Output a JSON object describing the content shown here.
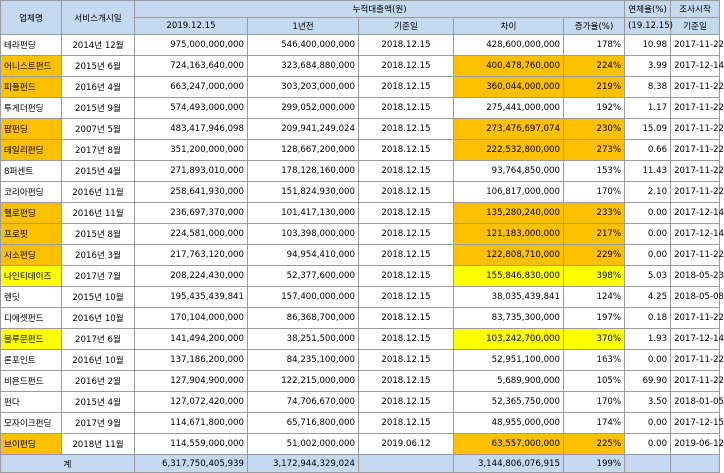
{
  "headers": {
    "name": "업체명",
    "start": "서비스개시일",
    "cumulative": "누적대출액(원)",
    "date_2019": "2019.12.15",
    "year_ago": "1년전",
    "base_date": "기준일",
    "diff": "차이",
    "growth": "증가율(%)",
    "delinquency": "연체율(%)",
    "delinquency_date": "(19.12.15)",
    "survey": "조사시작",
    "survey_base": "기준일"
  },
  "rows": [
    {
      "name": "테라펀딩",
      "start": "2014년 12월",
      "v2019": "975,000,000,000",
      "v_prev": "546,400,000,000",
      "base": "2018.12.15",
      "diff": "428,600,000,000",
      "growth": "178%",
      "delinq": "10.98",
      "survey": "2017-11-22",
      "highlight": ""
    },
    {
      "name": "어니스트펀드",
      "start": "2015년 6월",
      "v2019": "724,163,640,000",
      "v_prev": "323,684,880,000",
      "base": "2018.12.15",
      "diff": "400,478,760,000",
      "growth": "224%",
      "delinq": "3.99",
      "survey": "2017-12-14",
      "highlight": "orange"
    },
    {
      "name": "피플펀드",
      "start": "2016년 4월",
      "v2019": "663,247,000,000",
      "v_prev": "303,203,000,000",
      "base": "2018.12.15",
      "diff": "360,044,000,000",
      "growth": "219%",
      "delinq": "8.38",
      "survey": "2017-11-22",
      "highlight": "orange"
    },
    {
      "name": "투게더펀딩",
      "start": "2015년 9월",
      "v2019": "574,493,000,000",
      "v_prev": "299,052,000,000",
      "base": "2018.12.15",
      "diff": "275,441,000,000",
      "growth": "192%",
      "delinq": "1.17",
      "survey": "2017-11-22",
      "highlight": ""
    },
    {
      "name": "팝펀딩",
      "start": "2007년 5월",
      "v2019": "483,417,946,098",
      "v_prev": "209,941,249,024",
      "base": "2018.12.15",
      "diff": "273,476,697,074",
      "growth": "230%",
      "delinq": "15.09",
      "survey": "2017-11-22",
      "highlight": "orange"
    },
    {
      "name": "데일리펀딩",
      "start": "2017년 8월",
      "v2019": "351,200,000,000",
      "v_prev": "128,667,200,000",
      "base": "2018.12.15",
      "diff": "222,532,800,000",
      "growth": "273%",
      "delinq": "0.66",
      "survey": "2017-11-22",
      "highlight": "orange"
    },
    {
      "name": "8퍼센트",
      "start": "2015년 4월",
      "v2019": "271,893,010,000",
      "v_prev": "178,128,160,000",
      "base": "2018.12.15",
      "diff": "93,764,850,000",
      "growth": "153%",
      "delinq": "11.43",
      "survey": "2017-11-22",
      "highlight": ""
    },
    {
      "name": "코리아펀딩",
      "start": "2016년 11월",
      "v2019": "258,641,930,000",
      "v_prev": "151,824,930,000",
      "base": "2018.12.15",
      "diff": "106,817,000,000",
      "growth": "170%",
      "delinq": "2.10",
      "survey": "2017-11-22",
      "highlight": ""
    },
    {
      "name": "헬로펀딩",
      "start": "2016년 11월",
      "v2019": "236,697,370,000",
      "v_prev": "101,417,130,000",
      "base": "2018.12.15",
      "diff": "135,280,240,000",
      "growth": "233%",
      "delinq": "0.00",
      "survey": "2017-12-14",
      "highlight": "orange"
    },
    {
      "name": "프로핏",
      "start": "2015년 8월",
      "v2019": "224,581,000,000",
      "v_prev": "103,398,000,000",
      "base": "2018.12.15",
      "diff": "121,183,000,000",
      "growth": "217%",
      "delinq": "0.00",
      "survey": "2017-12-14",
      "highlight": "orange"
    },
    {
      "name": "시소펀딩",
      "start": "2016년 3월",
      "v2019": "217,763,120,000",
      "v_prev": "94,954,410,000",
      "base": "2018.12.15",
      "diff": "122,808,710,000",
      "growth": "229%",
      "delinq": "0.00",
      "survey": "2017-11-22",
      "highlight": "orange"
    },
    {
      "name": "나인티데이즈",
      "start": "2017년 7월",
      "v2019": "208,224,430,000",
      "v_prev": "52,377,600,000",
      "base": "2018.12.15",
      "diff": "155,846,830,000",
      "growth": "398%",
      "delinq": "5.03",
      "survey": "2018-05-23",
      "highlight": "yellow"
    },
    {
      "name": "렌딧",
      "start": "2015년 10월",
      "v2019": "195,435,439,841",
      "v_prev": "157,400,000,000",
      "base": "2018.12.15",
      "diff": "38,035,439,841",
      "growth": "124%",
      "delinq": "4.25",
      "survey": "2018-05-08",
      "highlight": ""
    },
    {
      "name": "디에셋펀드",
      "start": "2016년 10월",
      "v2019": "170,104,000,000",
      "v_prev": "86,368,700,000",
      "base": "2018.12.15",
      "diff": "83,735,300,000",
      "growth": "197%",
      "delinq": "0.18",
      "survey": "2017-11-22",
      "highlight": ""
    },
    {
      "name": "블루문펀드",
      "start": "2017년 6월",
      "v2019": "141,494,200,000",
      "v_prev": "38,251,500,000",
      "base": "2018.12.15",
      "diff": "103,242,700,000",
      "growth": "370%",
      "delinq": "1.93",
      "survey": "2017-12-14",
      "highlight": "yellow"
    },
    {
      "name": "론포인트",
      "start": "2016년 10월",
      "v2019": "137,186,200,000",
      "v_prev": "84,235,100,000",
      "base": "2018.12.15",
      "diff": "52,951,100,000",
      "growth": "163%",
      "delinq": "0.00",
      "survey": "2017-11-22",
      "highlight": ""
    },
    {
      "name": "비욘드펀드",
      "start": "2016년 2월",
      "v2019": "127,904,900,000",
      "v_prev": "122,215,000,000",
      "base": "2018.12.15",
      "diff": "5,689,900,000",
      "growth": "105%",
      "delinq": "69.90",
      "survey": "2017-11-22",
      "highlight": ""
    },
    {
      "name": "펀다",
      "start": "2015년 4월",
      "v2019": "127,072,420,000",
      "v_prev": "74,706,670,000",
      "base": "2018.12.15",
      "diff": "52,365,750,000",
      "growth": "170%",
      "delinq": "3.50",
      "survey": "2018-01-05",
      "highlight": ""
    },
    {
      "name": "모자이크펀딩",
      "start": "2017년 9월",
      "v2019": "114,671,800,000",
      "v_prev": "65,716,800,000",
      "base": "2018.12.15",
      "diff": "48,955,000,000",
      "growth": "174%",
      "delinq": "0.00",
      "survey": "2017-12-15",
      "highlight": ""
    },
    {
      "name": "브이펀딩",
      "start": "2018년 11월",
      "v2019": "114,559,000,000",
      "v_prev": "51,002,000,000",
      "base": "2019.06.12",
      "diff": "63,557,000,000",
      "growth": "225%",
      "delinq": "0.00",
      "survey": "2019-06-12",
      "highlight": "orange"
    }
  ],
  "total": {
    "label": "계",
    "v2019": "6,317,750,405,939",
    "v_prev": "3,172,944,329,024",
    "diff": "3,144,806,076,915",
    "growth": "199%"
  },
  "colors": {
    "header_bg": "#c5d9f1",
    "orange": "#ffc000",
    "yellow": "#ffff00",
    "border": "#9a9a9a"
  }
}
